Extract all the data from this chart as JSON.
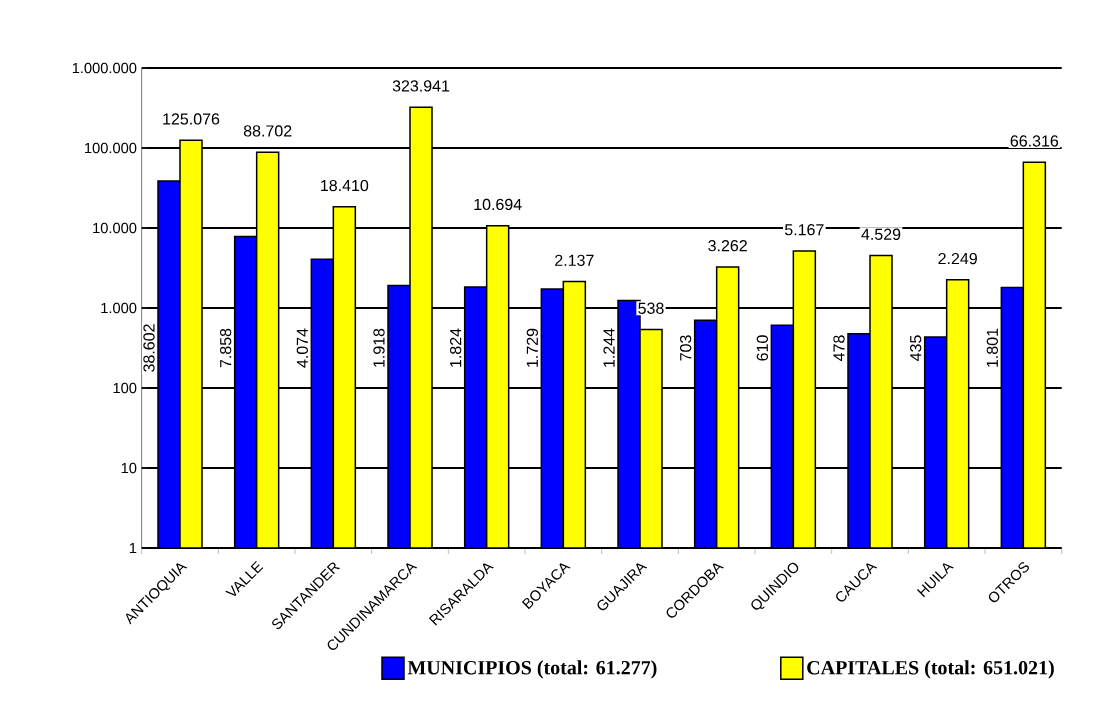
{
  "chart_data": {
    "type": "bar",
    "categories": [
      "ANTIOQUIA",
      "VALLE",
      "SANTANDER",
      "CUNDINAMARCA",
      "RISARALDA",
      "BOYACA",
      "GUAJIRA",
      "CORDOBA",
      "QUINDIO",
      "CAUCA",
      "HUILA",
      "OTROS"
    ],
    "series": [
      {
        "name": "MUNICIPIOS (total: 61.277)",
        "color": "#0000ff",
        "values": [
          38602,
          7858,
          4074,
          1918,
          1824,
          1729,
          1244,
          703,
          610,
          478,
          435,
          1801
        ],
        "value_labels": [
          "38.602",
          "7.858",
          "4.074",
          "1.918",
          "1.824",
          "1.729",
          "1.244",
          "703",
          "610",
          "478",
          "435",
          "1.801"
        ]
      },
      {
        "name": "CAPITALES (total: 651.021)",
        "color": "#ffff00",
        "values": [
          125076,
          88702,
          18410,
          323941,
          10694,
          2137,
          538,
          3262,
          5167,
          4529,
          2249,
          66316
        ],
        "value_labels": [
          "125.076",
          "88.702",
          "18.410",
          "323.941",
          "10.694",
          "2.137",
          "538",
          "3.262",
          "5.167",
          "4.529",
          "2.249",
          "66.316"
        ]
      }
    ],
    "log": true,
    "ylim": [
      1,
      1000000
    ],
    "yticks": [
      1,
      10,
      100,
      {
        "value": 1000,
        "label": "1.000"
      },
      {
        "value": 10000,
        "label": "10.000"
      },
      {
        "value": 100000,
        "label": "100.000"
      },
      {
        "value": 1000000,
        "label": "1.000.000"
      }
    ],
    "grid": "y",
    "legend": "bottom"
  }
}
